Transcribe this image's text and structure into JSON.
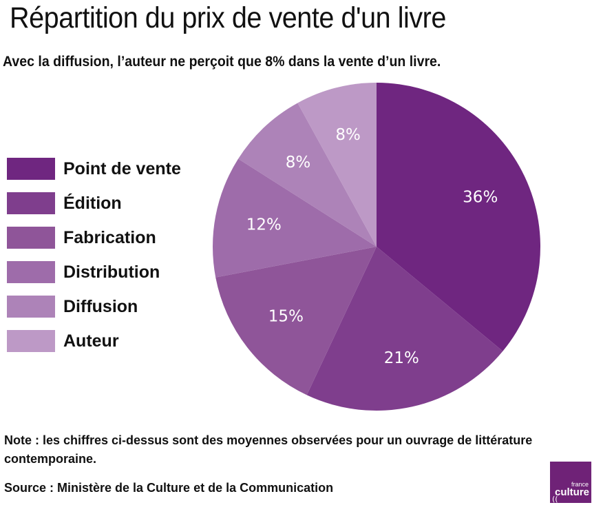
{
  "title": "Répartition du prix de vente d'un livre",
  "subtitle": "Avec la diffusion, l’auteur ne perçoit que 8% dans la vente d’un livre.",
  "note": "Note : les chiffres ci-dessus sont des moyennes observées pour un ouvrage de littérature contemporaine.",
  "source": "Source : Ministère de la Culture et de la Communication",
  "logo": {
    "top_text": "france",
    "main_text": "culture",
    "color": "#6f2277"
  },
  "chart_data": {
    "type": "pie",
    "title": "Répartition du prix de vente d'un livre",
    "legend_position": "left",
    "slices": [
      {
        "label": "Point de vente",
        "value": 36,
        "display": "36%",
        "color": "#6f2680"
      },
      {
        "label": "Édition",
        "value": 21,
        "display": "21%",
        "color": "#7f3e8d"
      },
      {
        "label": "Fabrication",
        "value": 15,
        "display": "15%",
        "color": "#8f5599"
      },
      {
        "label": "Distribution",
        "value": 12,
        "display": "12%",
        "color": "#9e6caa"
      },
      {
        "label": "Diffusion",
        "value": 8,
        "display": "8%",
        "color": "#ad83b8"
      },
      {
        "label": "Auteur",
        "value": 8,
        "display": "8%",
        "color": "#bd99c6"
      }
    ]
  }
}
